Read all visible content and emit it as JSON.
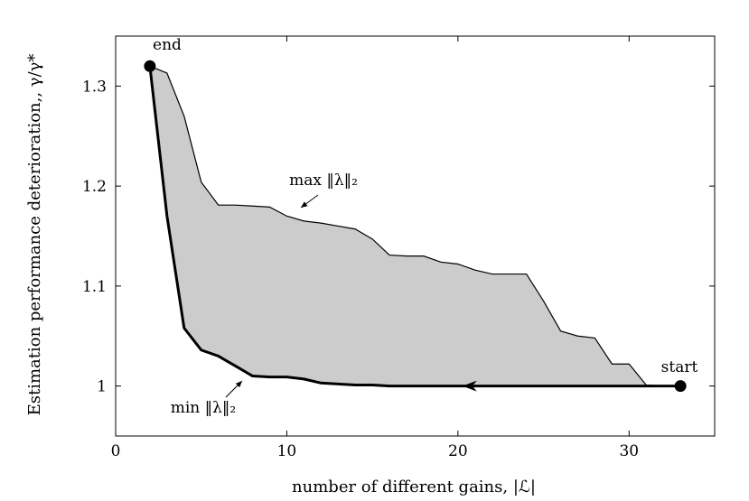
{
  "chart_data": {
    "type": "area",
    "xlabel": "number of different gains, |ℒ|",
    "ylabel": "Estimation performance deterioration,, γ/γ*",
    "xlim": [
      0,
      35
    ],
    "ylim": [
      0.95,
      1.35
    ],
    "x_ticks": [
      0,
      10,
      20,
      30
    ],
    "x_tick_labels": [
      "0",
      "10",
      "20",
      "30"
    ],
    "y_ticks": [
      1.0,
      1.1,
      1.2,
      1.3
    ],
    "y_tick_labels": [
      "1",
      "1.1",
      "1.2",
      "1.3"
    ],
    "grid": false,
    "series": [
      {
        "name": "max ‖λ‖₂",
        "x": [
          2,
          3,
          4,
          5,
          6,
          7,
          8,
          9,
          10,
          11,
          12,
          13,
          14,
          15,
          16,
          17,
          18,
          19,
          20,
          21,
          22,
          23,
          24,
          25,
          26,
          27,
          28,
          29,
          30,
          31,
          32,
          33
        ],
        "y": [
          1.32,
          1.313,
          1.27,
          1.204,
          1.181,
          1.181,
          1.18,
          1.179,
          1.17,
          1.165,
          1.163,
          1.16,
          1.157,
          1.147,
          1.131,
          1.13,
          1.13,
          1.124,
          1.122,
          1.116,
          1.112,
          1.112,
          1.112,
          1.085,
          1.055,
          1.05,
          1.048,
          1.022,
          1.022,
          1.001,
          1.0,
          1.0
        ]
      },
      {
        "name": "min ‖λ‖₂",
        "x": [
          2,
          3,
          4,
          5,
          6,
          7,
          8,
          9,
          10,
          11,
          12,
          13,
          14,
          15,
          16,
          17,
          18,
          19,
          20,
          21,
          22,
          23,
          24,
          25,
          26,
          27,
          28,
          29,
          30,
          31,
          32,
          33
        ],
        "y": [
          1.32,
          1.17,
          1.058,
          1.036,
          1.03,
          1.02,
          1.01,
          1.009,
          1.009,
          1.007,
          1.003,
          1.002,
          1.001,
          1.001,
          1.0,
          1.0,
          1.0,
          1.0,
          1.0,
          1.0,
          1.0,
          1.0,
          1.0,
          1.0,
          1.0,
          1.0,
          1.0,
          1.0,
          1.0,
          1.0,
          1.0,
          1.0
        ]
      }
    ],
    "annotations": {
      "start": {
        "text": "start",
        "x": 33,
        "y": 1.0
      },
      "end": {
        "text": "end",
        "x": 2,
        "y": 1.32
      },
      "max_label": {
        "text": "max ‖λ‖₂"
      },
      "min_label": {
        "text": "min ‖λ‖₂"
      }
    },
    "fill_color": "#cccccc",
    "line_color": "#000000"
  }
}
